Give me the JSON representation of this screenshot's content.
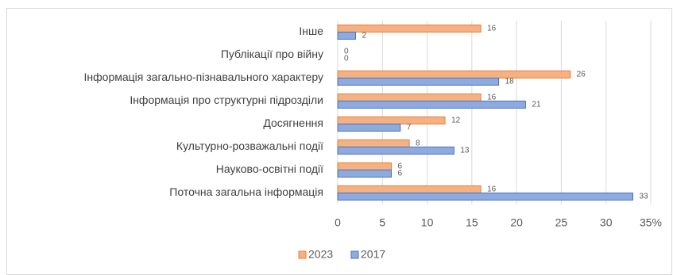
{
  "chart_data": {
    "type": "barh",
    "categories": [
      "Інше",
      "Публікації про війну",
      "Інформація загально-пізнавального характеру",
      "Інформація про структурні підрозділи",
      "Досягнення",
      "Культурно-розважальні події",
      "Науково-освітні події",
      "Поточна загальна інформація"
    ],
    "series": [
      {
        "name": "2023",
        "color": "#f4b183",
        "edge": "#ed7d31",
        "values": [
          16,
          0,
          26,
          16,
          12,
          8,
          6,
          16
        ]
      },
      {
        "name": "2017",
        "color": "#8faadc",
        "edge": "#4472c4",
        "values": [
          2,
          0,
          18,
          21,
          7,
          13,
          6,
          33
        ]
      }
    ],
    "xlim": [
      0,
      35
    ],
    "xticks": [
      0,
      5,
      10,
      15,
      20,
      25,
      30,
      {
        "value": 35,
        "label": "35%"
      }
    ],
    "grid": true
  }
}
